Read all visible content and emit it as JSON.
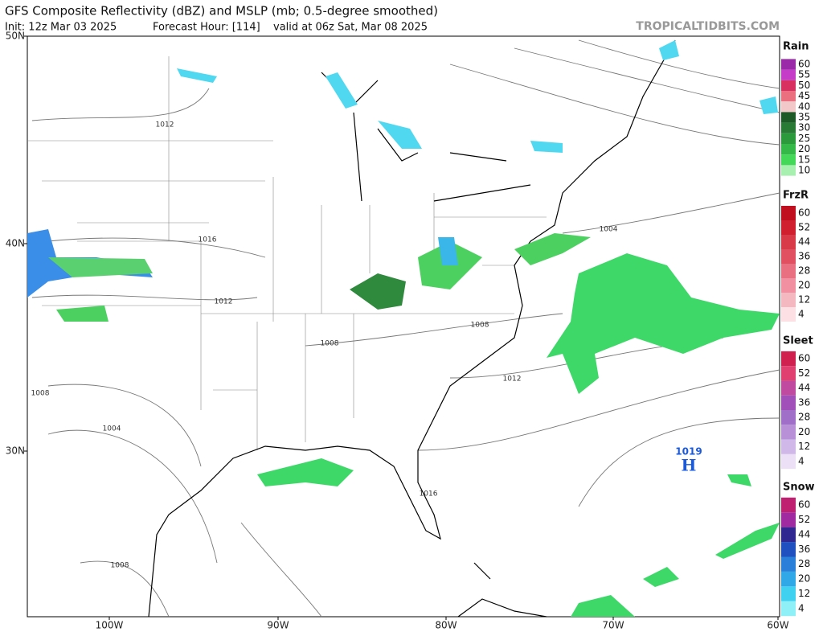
{
  "header": {
    "title": "GFS Composite Reflectivity (dBZ) and MSLP (mb; 0.5-degree smoothed)",
    "init": "Init: 12z Mar 03 2025",
    "forecast_hour": "Forecast Hour: [114]",
    "valid": "valid at 06z Sat, Mar 08 2025",
    "watermark": "TROPICALTIDBITS.COM"
  },
  "map": {
    "lat_labels": [
      "50N",
      "40N",
      "30N"
    ],
    "lon_labels": [
      "100W",
      "90W",
      "80W",
      "70W",
      "60W"
    ],
    "isobar_labels": [
      "1012",
      "1016",
      "1012",
      "1008",
      "1008",
      "1004",
      "1012",
      "1008",
      "1004",
      "1016",
      "1008"
    ],
    "high": {
      "pressure": "1019",
      "label": "H"
    }
  },
  "legends": [
    {
      "title": "Rain",
      "labels": [
        "60",
        "55",
        "50",
        "45",
        "40",
        "35",
        "30",
        "25",
        "20",
        "15",
        "10"
      ]
    },
    {
      "title": "FrzR",
      "labels": [
        "60",
        "52",
        "44",
        "36",
        "28",
        "20",
        "12",
        "4"
      ]
    },
    {
      "title": "Sleet",
      "labels": [
        "60",
        "52",
        "44",
        "36",
        "28",
        "20",
        "12",
        "4"
      ]
    },
    {
      "title": "Snow",
      "labels": [
        "60",
        "52",
        "44",
        "36",
        "28",
        "20",
        "12",
        "4"
      ]
    }
  ]
}
